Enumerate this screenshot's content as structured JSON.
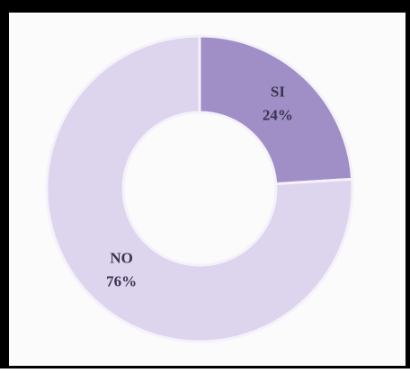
{
  "chart_data": {
    "type": "pie",
    "categories": [
      "SI",
      "NO"
    ],
    "values": [
      24,
      76
    ],
    "value_labels": [
      "24%",
      "76%"
    ],
    "colors": [
      "#a08fc6",
      "#ddd4ee"
    ]
  }
}
